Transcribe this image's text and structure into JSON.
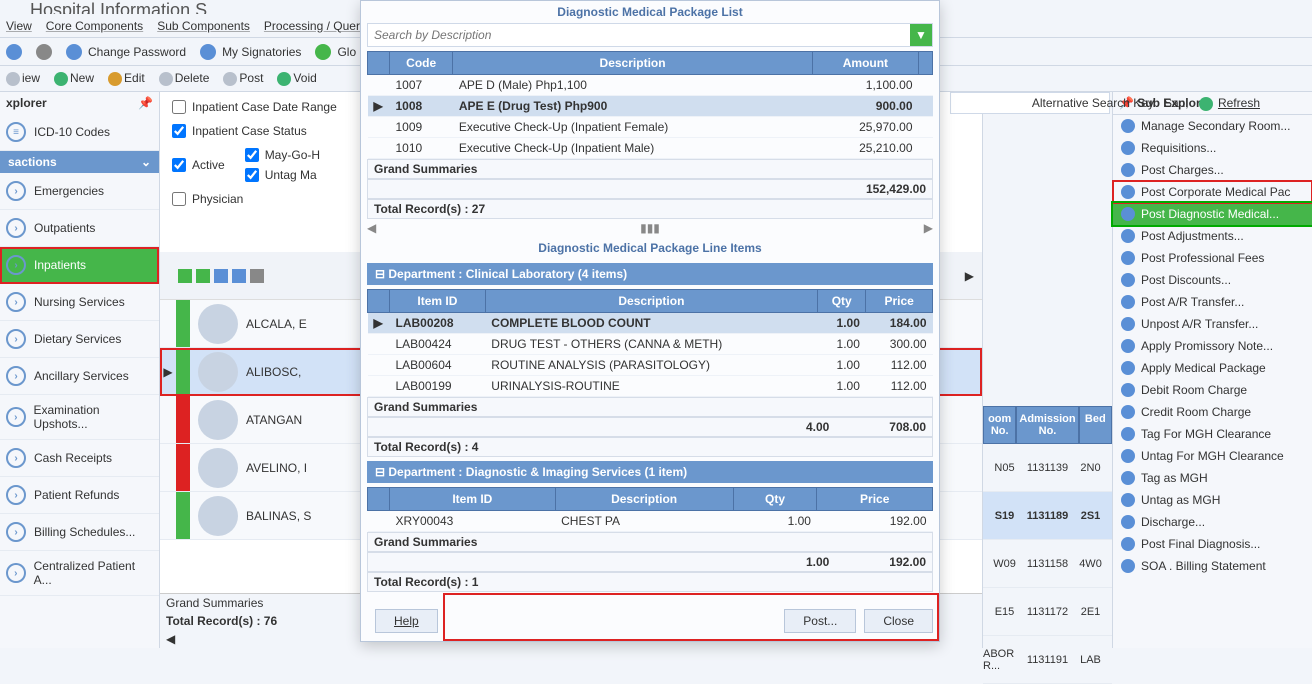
{
  "appTitle": "Hospital Information S",
  "menuBar": [
    "View",
    "Core Components",
    "Sub Components",
    "Processing / Queri"
  ],
  "toolbar1": [
    "Change Password",
    "My Signatories",
    "Glo"
  ],
  "toolbar2": [
    {
      "label": "iew",
      "color": "gray"
    },
    {
      "label": "New",
      "color": "green"
    },
    {
      "label": "Edit",
      "color": "orange"
    },
    {
      "label": "Delete",
      "color": "gray"
    },
    {
      "label": "Post",
      "color": "gray"
    },
    {
      "label": "Void",
      "color": "green"
    }
  ],
  "leftExplorer": {
    "title": "xplorer",
    "topItem": "ICD-10 Codes",
    "sectionHeader": "sactions",
    "items": [
      "Emergencies",
      "Outpatients",
      "Inpatients",
      "Nursing Services",
      "Dietary Services",
      "Ancillary Services",
      "Examination Upshots...",
      "Cash Receipts",
      "Patient Refunds",
      "Billing Schedules...",
      "Centralized Patient A..."
    ],
    "activeIndex": 2
  },
  "filters": {
    "caseDateRange": {
      "label": "Inpatient Case Date Range",
      "checked": false
    },
    "caseStatus": {
      "label": "Inpatient Case Status",
      "checked": true
    },
    "active": {
      "label": "Active",
      "checked": true
    },
    "mayGo": {
      "label": "May-Go-H",
      "checked": true
    },
    "untagMa": {
      "label": "Untag Ma",
      "checked": true
    },
    "physician": {
      "label": "Physician",
      "checked": false
    }
  },
  "patients": [
    {
      "name": "ALCALA, E",
      "band": "#45b64a",
      "room": "N05",
      "adm": "1131139",
      "bed": "2N0"
    },
    {
      "name": "ALIBOSC,",
      "band": "#45b64a",
      "room": "S19",
      "adm": "1131189",
      "bed": "2S1",
      "selected": true,
      "boxed": true
    },
    {
      "name": "ATANGAN",
      "band": "#d22",
      "room": "W09",
      "adm": "1131158",
      "bed": "4W0"
    },
    {
      "name": "AVELINO, I",
      "band": "#d22",
      "room": "E15",
      "adm": "1131172",
      "bed": "2E1"
    },
    {
      "name": "BALINAS, S",
      "band": "#45b64a",
      "room": "ABOR R...",
      "adm": "1131191",
      "bed": "LAB"
    }
  ],
  "patientFooter": {
    "summaries": "Grand Summaries",
    "total": "Total Record(s) : 76"
  },
  "rightHeaders": [
    "oom No.",
    "Admission No.",
    "Bed"
  ],
  "altSearch": {
    "label": "Alternative Search Key",
    "refresh": "Refresh"
  },
  "subExplorer": {
    "title": "Sub Explorer",
    "items": [
      "Manage Secondary Room...",
      "Requisitions...",
      "Post Charges...",
      "Post Corporate Medical Pac",
      "Post Diagnostic Medical...",
      "Post Adjustments...",
      "Post Professional Fees",
      "Post Discounts...",
      "Post A/R Transfer...",
      "Unpost A/R Transfer...",
      "Apply Promissory Note...",
      "Apply Medical Package",
      "Debit Room Charge",
      "Credit Room Charge",
      "Tag For MGH Clearance",
      "Untag For MGH Clearance",
      "Tag as MGH",
      "Untag as MGH",
      "Discharge...",
      "Post Final Diagnosis...",
      "SOA . Billing Statement"
    ],
    "highlightUpper": 3,
    "activeIndex": 4
  },
  "modal": {
    "listTitle": "Diagnostic Medical Package List",
    "searchPlaceholder": "Search by Description",
    "listHeaders": [
      "Code",
      "Description",
      "Amount"
    ],
    "listRows": [
      {
        "code": "1007",
        "desc": "APE D (Male) Php1,100",
        "amount": "1,100.00"
      },
      {
        "code": "1008",
        "desc": "APE E (Drug Test) Php900",
        "amount": "900.00",
        "selected": true
      },
      {
        "code": "1009",
        "desc": "Executive Check-Up (Inpatient Female)",
        "amount": "25,970.00"
      },
      {
        "code": "1010",
        "desc": "Executive Check-Up (Inpatient Male)",
        "amount": "25,210.00"
      }
    ],
    "grandSummaries": "Grand Summaries",
    "grandTotal": "152,429.00",
    "totalRecords1": "Total Record(s) : 27",
    "lineTitle": "Diagnostic Medical Package Line Items",
    "dept1": {
      "header": "Department : Clinical Laboratory (4 items)",
      "cols": [
        "Item ID",
        "Description",
        "Qty",
        "Price"
      ],
      "rows": [
        {
          "id": "LAB00208",
          "desc": "COMPLETE BLOOD COUNT",
          "qty": "1.00",
          "price": "184.00",
          "selected": true
        },
        {
          "id": "LAB00424",
          "desc": "DRUG TEST - OTHERS (CANNA & METH)",
          "qty": "1.00",
          "price": "300.00"
        },
        {
          "id": "LAB00604",
          "desc": "ROUTINE ANALYSIS (PARASITOLOGY)",
          "qty": "1.00",
          "price": "112.00"
        },
        {
          "id": "LAB00199",
          "desc": "URINALYSIS-ROUTINE",
          "qty": "1.00",
          "price": "112.00"
        }
      ],
      "sumQty": "4.00",
      "sumPrice": "708.00",
      "total": "Total Record(s) : 4"
    },
    "dept2": {
      "header": "Department : Diagnostic & Imaging Services (1 item)",
      "cols": [
        "Item ID",
        "Description",
        "Qty",
        "Price"
      ],
      "rows": [
        {
          "id": "XRY00043",
          "desc": "CHEST PA",
          "qty": "1.00",
          "price": "192.00"
        }
      ],
      "sumQty": "1.00",
      "sumPrice": "192.00",
      "total": "Total Record(s) : 1"
    },
    "helpBtn": "Help",
    "postBtn": "Post...",
    "closeBtn": "Close"
  }
}
